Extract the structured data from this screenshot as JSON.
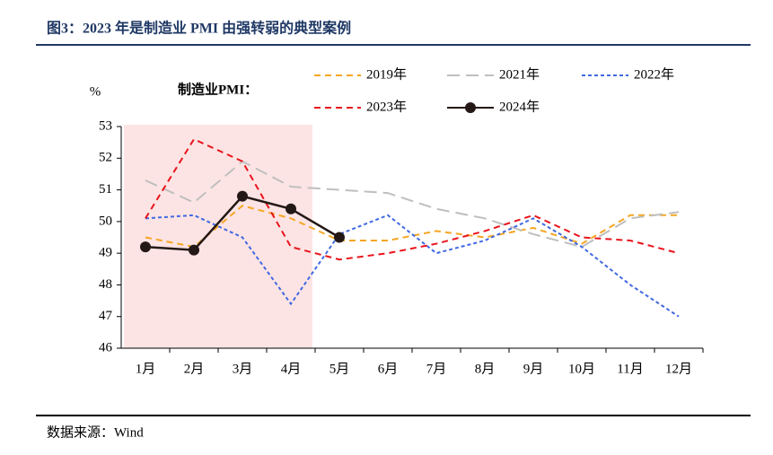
{
  "chart_data": {
    "type": "line",
    "title": "图3：2023 年是制造业 PMI 由强转弱的典型案例",
    "y_unit": "%",
    "annotation": "制造业PMI：",
    "source": "数据来源：Wind",
    "categories": [
      "1月",
      "2月",
      "3月",
      "4月",
      "5月",
      "6月",
      "7月",
      "8月",
      "9月",
      "10月",
      "11月",
      "12月"
    ],
    "series": [
      {
        "name": "2019年",
        "color": "#f5a623",
        "dash": "dashed",
        "values": [
          49.5,
          49.2,
          50.5,
          50.1,
          49.4,
          49.4,
          49.7,
          49.5,
          49.8,
          49.3,
          50.2,
          50.2
        ]
      },
      {
        "name": "2021年",
        "color": "#bfbfbf",
        "dash": "longdash",
        "values": [
          51.3,
          50.6,
          51.9,
          51.1,
          51.0,
          50.9,
          50.4,
          50.1,
          49.6,
          49.2,
          50.1,
          50.3
        ]
      },
      {
        "name": "2022年",
        "color": "#4169e1",
        "dash": "dotted",
        "values": [
          50.1,
          50.2,
          49.5,
          47.4,
          49.6,
          50.2,
          49.0,
          49.4,
          50.1,
          49.2,
          48.0,
          47.0
        ]
      },
      {
        "name": "2023年",
        "color": "#e8141c",
        "dash": "dashed",
        "values": [
          50.1,
          52.6,
          51.9,
          49.2,
          48.8,
          49.0,
          49.3,
          49.7,
          50.2,
          49.5,
          49.4,
          49.0
        ]
      },
      {
        "name": "2024年",
        "color": "#231815",
        "dash": "solid",
        "marker": true,
        "values": [
          49.2,
          49.1,
          50.8,
          50.4,
          49.5,
          null,
          null,
          null,
          null,
          null,
          null,
          null
        ]
      }
    ],
    "ylim": [
      46,
      53
    ],
    "yticks": [
      46,
      47,
      48,
      49,
      50,
      51,
      52,
      53
    ]
  }
}
